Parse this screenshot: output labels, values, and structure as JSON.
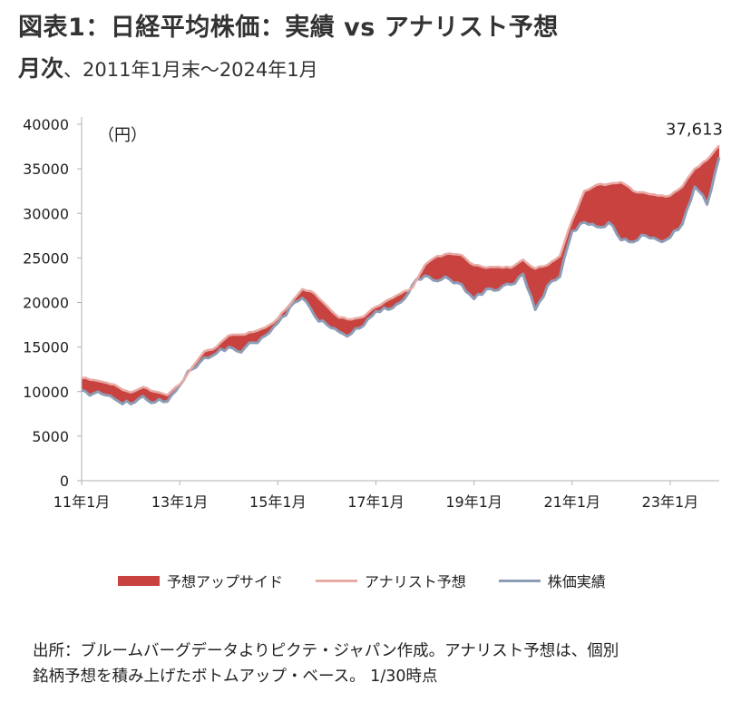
{
  "title": "図表1：日経平均株価：実績 vs アナリスト予想",
  "subtitle_main": "月次",
  "subtitle_rest": "、2011年1月末～2024年1月",
  "colors": {
    "upside": "#c8423f",
    "forecast": "#e8aaa4",
    "actual": "#8d9db6",
    "axis": "#b0b0b0"
  },
  "chart_data": {
    "type": "area",
    "unit_label": "（円）",
    "ylim": [
      0,
      40000
    ],
    "yticks": [
      0,
      5000,
      10000,
      15000,
      20000,
      25000,
      30000,
      35000,
      40000
    ],
    "x_range": [
      "2011-01",
      "2024-01"
    ],
    "xtick_labels": [
      {
        "x": "2011-01",
        "label": "11年1月"
      },
      {
        "x": "2013-01",
        "label": "13年1月"
      },
      {
        "x": "2015-01",
        "label": "15年1月"
      },
      {
        "x": "2017-01",
        "label": "17年1月"
      },
      {
        "x": "2019-01",
        "label": "19年1月"
      },
      {
        "x": "2021-01",
        "label": "21年1月"
      },
      {
        "x": "2023-01",
        "label": "23年1月"
      }
    ],
    "grid": false,
    "annotation": {
      "x": "2024-01",
      "y": 37613,
      "text": "37,613"
    },
    "legend": {
      "position": "bottom"
    },
    "series": [
      {
        "name": "予想アップサイド",
        "kind": "filled band between アナリスト予想 and 株価実績"
      },
      {
        "name": "アナリスト予想",
        "values": [
          {
            "x": "2011-01",
            "y": 11500
          },
          {
            "x": "2011-04",
            "y": 11300
          },
          {
            "x": "2011-07",
            "y": 11000
          },
          {
            "x": "2011-10",
            "y": 10500
          },
          {
            "x": "2012-01",
            "y": 9900
          },
          {
            "x": "2012-04",
            "y": 10500
          },
          {
            "x": "2012-07",
            "y": 10000
          },
          {
            "x": "2012-10",
            "y": 9600
          },
          {
            "x": "2013-01",
            "y": 10800
          },
          {
            "x": "2013-04",
            "y": 12700
          },
          {
            "x": "2013-07",
            "y": 14500
          },
          {
            "x": "2013-10",
            "y": 15000
          },
          {
            "x": "2014-01",
            "y": 16300
          },
          {
            "x": "2014-04",
            "y": 16400
          },
          {
            "x": "2014-07",
            "y": 16700
          },
          {
            "x": "2014-10",
            "y": 17200
          },
          {
            "x": "2015-01",
            "y": 18200
          },
          {
            "x": "2015-04",
            "y": 19800
          },
          {
            "x": "2015-07",
            "y": 21500
          },
          {
            "x": "2015-10",
            "y": 21000
          },
          {
            "x": "2016-01",
            "y": 19600
          },
          {
            "x": "2016-04",
            "y": 18300
          },
          {
            "x": "2016-07",
            "y": 18100
          },
          {
            "x": "2016-10",
            "y": 18400
          },
          {
            "x": "2017-01",
            "y": 19500
          },
          {
            "x": "2017-04",
            "y": 20300
          },
          {
            "x": "2017-07",
            "y": 21000
          },
          {
            "x": "2017-10",
            "y": 21700
          },
          {
            "x": "2018-01",
            "y": 24200
          },
          {
            "x": "2018-04",
            "y": 25200
          },
          {
            "x": "2018-07",
            "y": 25500
          },
          {
            "x": "2018-10",
            "y": 25300
          },
          {
            "x": "2019-01",
            "y": 24200
          },
          {
            "x": "2019-04",
            "y": 23900
          },
          {
            "x": "2019-07",
            "y": 24000
          },
          {
            "x": "2019-10",
            "y": 23900
          },
          {
            "x": "2020-01",
            "y": 24800
          },
          {
            "x": "2020-04",
            "y": 23800
          },
          {
            "x": "2020-07",
            "y": 24200
          },
          {
            "x": "2020-10",
            "y": 25200
          },
          {
            "x": "2021-01",
            "y": 29200
          },
          {
            "x": "2021-04",
            "y": 32500
          },
          {
            "x": "2021-07",
            "y": 33200
          },
          {
            "x": "2021-10",
            "y": 33300
          },
          {
            "x": "2022-01",
            "y": 33500
          },
          {
            "x": "2022-04",
            "y": 32500
          },
          {
            "x": "2022-07",
            "y": 32300
          },
          {
            "x": "2022-10",
            "y": 32000
          },
          {
            "x": "2023-01",
            "y": 32000
          },
          {
            "x": "2023-04",
            "y": 33000
          },
          {
            "x": "2023-07",
            "y": 35000
          },
          {
            "x": "2023-10",
            "y": 36000
          },
          {
            "x": "2024-01",
            "y": 37613
          }
        ]
      },
      {
        "name": "株価実績",
        "values": [
          {
            "x": "2011-01",
            "y": 10200
          },
          {
            "x": "2011-04",
            "y": 9800
          },
          {
            "x": "2011-07",
            "y": 9600
          },
          {
            "x": "2011-10",
            "y": 8900
          },
          {
            "x": "2012-01",
            "y": 8600
          },
          {
            "x": "2012-04",
            "y": 9500
          },
          {
            "x": "2012-07",
            "y": 8800
          },
          {
            "x": "2012-10",
            "y": 8900
          },
          {
            "x": "2013-01",
            "y": 10700
          },
          {
            "x": "2013-04",
            "y": 12500
          },
          {
            "x": "2013-07",
            "y": 13800
          },
          {
            "x": "2013-10",
            "y": 14300
          },
          {
            "x": "2014-01",
            "y": 15000
          },
          {
            "x": "2014-04",
            "y": 14400
          },
          {
            "x": "2014-07",
            "y": 15500
          },
          {
            "x": "2014-10",
            "y": 16300
          },
          {
            "x": "2015-01",
            "y": 17700
          },
          {
            "x": "2015-04",
            "y": 19500
          },
          {
            "x": "2015-07",
            "y": 20500
          },
          {
            "x": "2015-10",
            "y": 18500
          },
          {
            "x": "2016-01",
            "y": 17500
          },
          {
            "x": "2016-04",
            "y": 16700
          },
          {
            "x": "2016-07",
            "y": 16500
          },
          {
            "x": "2016-10",
            "y": 17400
          },
          {
            "x": "2017-01",
            "y": 19000
          },
          {
            "x": "2017-04",
            "y": 19200
          },
          {
            "x": "2017-07",
            "y": 20000
          },
          {
            "x": "2017-10",
            "y": 22000
          },
          {
            "x": "2018-01",
            "y": 23000
          },
          {
            "x": "2018-04",
            "y": 22400
          },
          {
            "x": "2018-07",
            "y": 22600
          },
          {
            "x": "2018-10",
            "y": 22000
          },
          {
            "x": "2019-01",
            "y": 20400
          },
          {
            "x": "2019-04",
            "y": 21500
          },
          {
            "x": "2019-07",
            "y": 21400
          },
          {
            "x": "2019-10",
            "y": 22000
          },
          {
            "x": "2020-01",
            "y": 23200
          },
          {
            "x": "2020-04",
            "y": 19200
          },
          {
            "x": "2020-07",
            "y": 21900
          },
          {
            "x": "2020-10",
            "y": 22900
          },
          {
            "x": "2021-01",
            "y": 28000
          },
          {
            "x": "2021-04",
            "y": 29000
          },
          {
            "x": "2021-07",
            "y": 28500
          },
          {
            "x": "2021-10",
            "y": 29000
          },
          {
            "x": "2022-01",
            "y": 27000
          },
          {
            "x": "2022-04",
            "y": 26800
          },
          {
            "x": "2022-07",
            "y": 27500
          },
          {
            "x": "2022-10",
            "y": 27000
          },
          {
            "x": "2023-01",
            "y": 27300
          },
          {
            "x": "2023-04",
            "y": 28800
          },
          {
            "x": "2023-07",
            "y": 33000
          },
          {
            "x": "2023-10",
            "y": 31000
          },
          {
            "x": "2024-01",
            "y": 36300
          }
        ]
      }
    ]
  },
  "legend": {
    "upside": "予想アップサイド",
    "forecast": "アナリスト予想",
    "actual": "株価実績"
  },
  "source": {
    "line1": "出所：ブルームバーグデータよりピクテ・ジャパン作成。アナリスト予想は、個別",
    "line2": "銘柄予想を積み上げたボトムアップ・ベース。 1/30時点"
  }
}
